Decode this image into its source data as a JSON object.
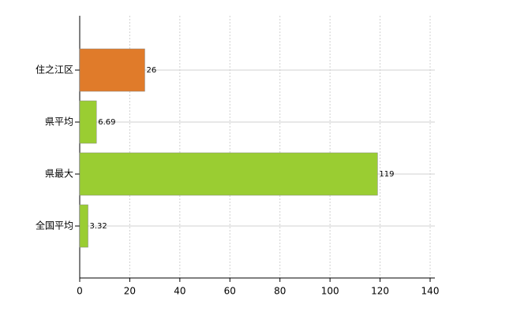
{
  "chart_data": {
    "type": "barh",
    "categories": [
      "住之江区",
      "県平均",
      "県最大",
      "全国平均"
    ],
    "values": [
      26,
      6.69,
      119,
      3.32
    ],
    "colors": [
      "#e07b2a",
      "#9acd32",
      "#9acd32",
      "#9acd32"
    ],
    "xlim": [
      0,
      140
    ],
    "xticks": [
      0,
      20,
      40,
      60,
      80,
      100,
      120,
      140
    ],
    "grid": true
  }
}
